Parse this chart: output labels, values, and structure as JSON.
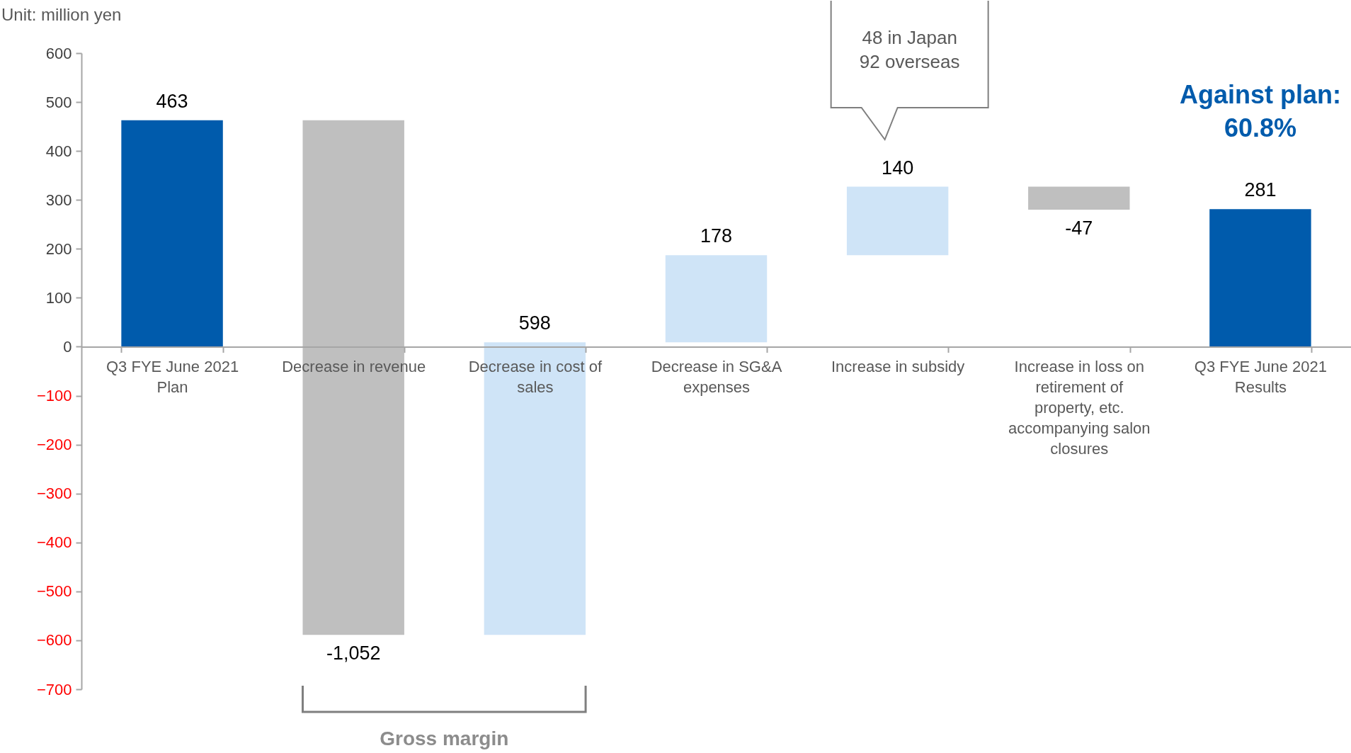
{
  "chart_data": {
    "type": "bar",
    "categories": [
      "Q3 FYE June 2021 Plan",
      "Decrease in revenue",
      "Decrease in cost of sales",
      "Decrease in SG&A expenses",
      "Increase in subsidy",
      "Increase in loss on retirement of property, etc. accompanying salon closures",
      "Q3 FYE June 2021 Results"
    ],
    "values": [
      463,
      -1052,
      598,
      178,
      140,
      -47,
      281
    ],
    "base": [
      0,
      463,
      -589,
      9,
      187,
      327,
      0
    ],
    "colors": [
      "#005bac",
      "#bfbfbf",
      "#cfe4f7",
      "#cfe4f7",
      "#cfe4f7",
      "#bfbfbf",
      "#005bac"
    ],
    "value_labels": [
      "463",
      "-1,052",
      "598",
      "178",
      "140",
      "-47",
      "281"
    ],
    "ylim": [
      -700,
      600
    ],
    "yticks": [
      -700,
      -600,
      -500,
      -400,
      -300,
      -200,
      -100,
      0,
      100,
      200,
      300,
      400,
      500,
      600
    ],
    "grid": false,
    "annotations": [
      "Unit: million yen",
      "48 in Japan\n92 overseas",
      "Against plan:\n60.8%",
      "Gross margin"
    ]
  }
}
